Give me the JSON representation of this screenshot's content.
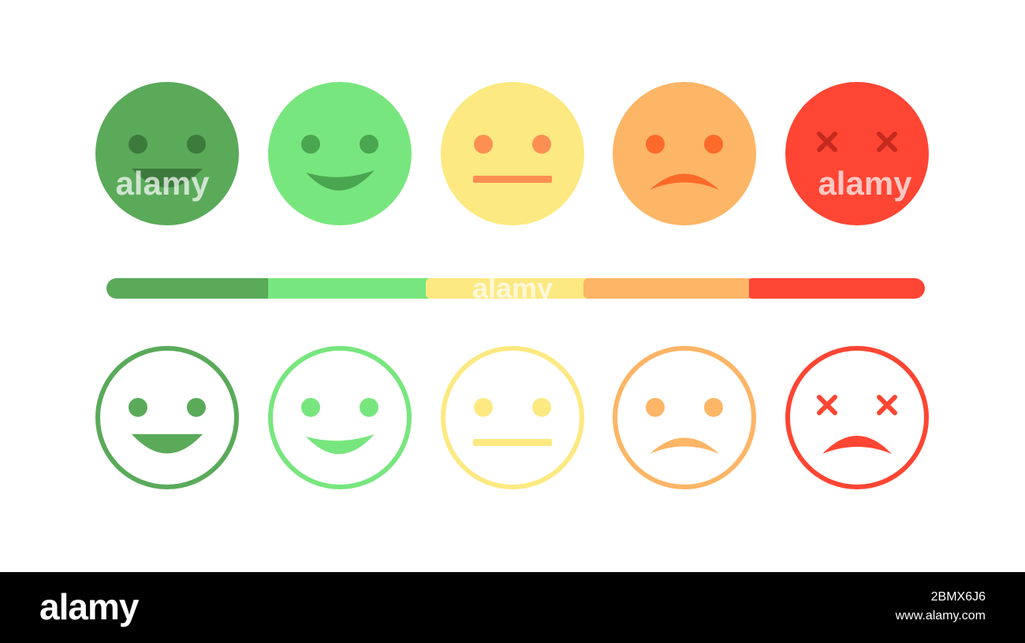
{
  "rating_levels": [
    {
      "key": "very-happy",
      "color": "#5aaa5a",
      "feature": "#3c7a3c"
    },
    {
      "key": "happy",
      "color": "#78e67e",
      "feature": "#4aa651"
    },
    {
      "key": "neutral",
      "color": "#fde982",
      "feature": "#fd8f53"
    },
    {
      "key": "sad",
      "color": "#fdb566",
      "feature": "#fd6a2a"
    },
    {
      "key": "very-sad",
      "color": "#ff4533",
      "feature": "#c42a1d"
    }
  ],
  "outline_feature_colors": [
    "#5aaa5a",
    "#78e67e",
    "#fde982",
    "#fdb566",
    "#ff4533"
  ],
  "watermark": {
    "text": "alamy",
    "id": "2BMX6J6",
    "url": "www.alamy.com"
  },
  "colors": {
    "background": "#ffffff",
    "footer": "#000000"
  }
}
